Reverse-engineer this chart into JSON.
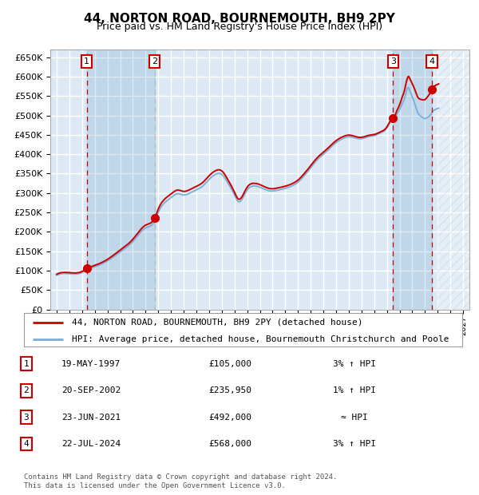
{
  "title": "44, NORTON ROAD, BOURNEMOUTH, BH9 2PY",
  "subtitle": "Price paid vs. HM Land Registry's House Price Index (HPI)",
  "title_fontsize": 11,
  "subtitle_fontsize": 9,
  "ylim": [
    0,
    670000
  ],
  "yticks": [
    0,
    50000,
    100000,
    150000,
    200000,
    250000,
    300000,
    350000,
    400000,
    450000,
    500000,
    550000,
    600000,
    650000
  ],
  "ytick_labels": [
    "£0",
    "£50K",
    "£100K",
    "£150K",
    "£200K",
    "£250K",
    "£300K",
    "£350K",
    "£400K",
    "£450K",
    "£500K",
    "£550K",
    "£600K",
    "£650K"
  ],
  "bg_color": "#dce9f5",
  "grid_color": "#ffffff",
  "line_color_red": "#cc0000",
  "line_color_blue": "#7aaed6",
  "sale_marker_color": "#cc0000",
  "vline_color_red": "#cc0000",
  "vline_color_gray": "#bbbbbb",
  "purchases": [
    {
      "label": 1,
      "date": 1997.38,
      "price": 105000
    },
    {
      "label": 2,
      "date": 2002.72,
      "price": 235950
    },
    {
      "label": 3,
      "date": 2021.48,
      "price": 492000
    },
    {
      "label": 4,
      "date": 2024.55,
      "price": 568000
    }
  ],
  "legend_entry1": "44, NORTON ROAD, BOURNEMOUTH, BH9 2PY (detached house)",
  "legend_entry2": "HPI: Average price, detached house, Bournemouth Christchurch and Poole",
  "table_rows": [
    {
      "num": 1,
      "date": "19-MAY-1997",
      "price": "£105,000",
      "hpi": "3% ↑ HPI"
    },
    {
      "num": 2,
      "date": "20-SEP-2002",
      "price": "£235,950",
      "hpi": "1% ↑ HPI"
    },
    {
      "num": 3,
      "date": "23-JUN-2021",
      "price": "£492,000",
      "hpi": "≈ HPI"
    },
    {
      "num": 4,
      "date": "22-JUL-2024",
      "price": "£568,000",
      "hpi": "3% ↑ HPI"
    }
  ],
  "footer": "Contains HM Land Registry data © Crown copyright and database right 2024.\nThis data is licensed under the Open Government Licence v3.0.",
  "xmin": 1994.5,
  "xmax": 2027.5,
  "hatch_start": 2025.0
}
